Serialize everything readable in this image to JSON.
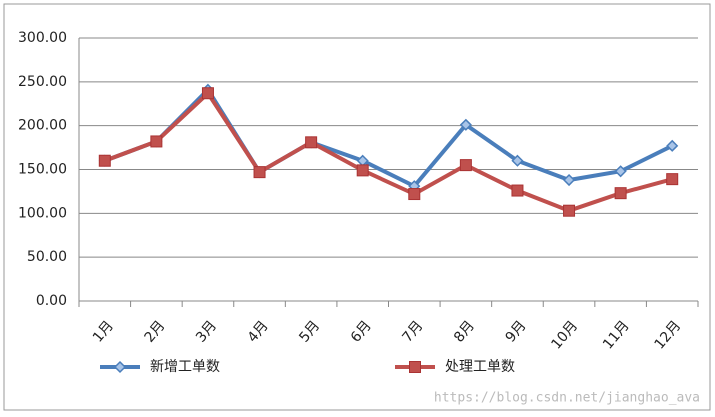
{
  "chart_data": {
    "type": "line",
    "categories": [
      "1月",
      "2月",
      "3月",
      "4月",
      "5月",
      "6月",
      "7月",
      "8月",
      "9月",
      "10月",
      "11月",
      "12月"
    ],
    "series": [
      {
        "name": "新增工单数",
        "color": "#4a7ebb",
        "marker": "diamond",
        "values": [
          160,
          182,
          241,
          147,
          181,
          160,
          131,
          201,
          160,
          138,
          148,
          177
        ]
      },
      {
        "name": "处理工单数",
        "color": "#c0504d",
        "marker": "square",
        "values": [
          160,
          182,
          237,
          147,
          181,
          149,
          122,
          155,
          126,
          103,
          123,
          139
        ]
      }
    ],
    "ylim": [
      0,
      300
    ],
    "yticks": [
      {
        "value": 0,
        "label": "0.00"
      },
      {
        "value": 50,
        "label": "50.00"
      },
      {
        "value": 100,
        "label": "100.00"
      },
      {
        "value": 150,
        "label": "150.00"
      },
      {
        "value": 200,
        "label": "200.00"
      },
      {
        "value": 250,
        "label": "250.00"
      },
      {
        "value": 300,
        "label": "300.00"
      }
    ],
    "grid": true,
    "legend": "bottom",
    "watermark": "https://blog.csdn.net/jianghao_ava"
  }
}
